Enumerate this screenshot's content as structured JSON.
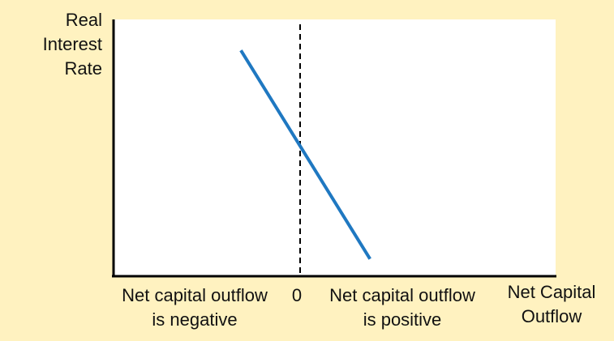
{
  "chart_data": {
    "type": "line",
    "ylabel": "Real\nInterest\nRate",
    "xlabel": "Net Capital\nOutflow",
    "x_zero_label": "0",
    "x_negative_label": "Net capital outflow\nis negative",
    "x_positive_label": "Net capital outflow\nis positive",
    "series": [
      {
        "color": "#1F78C1",
        "x": [
          -0.31,
          0.39
        ],
        "y": [
          0.88,
          0.07
        ]
      }
    ],
    "xlim": [
      -1,
      1.4
    ],
    "ylim": [
      0,
      1
    ],
    "zero_reference_line": "dashed"
  }
}
